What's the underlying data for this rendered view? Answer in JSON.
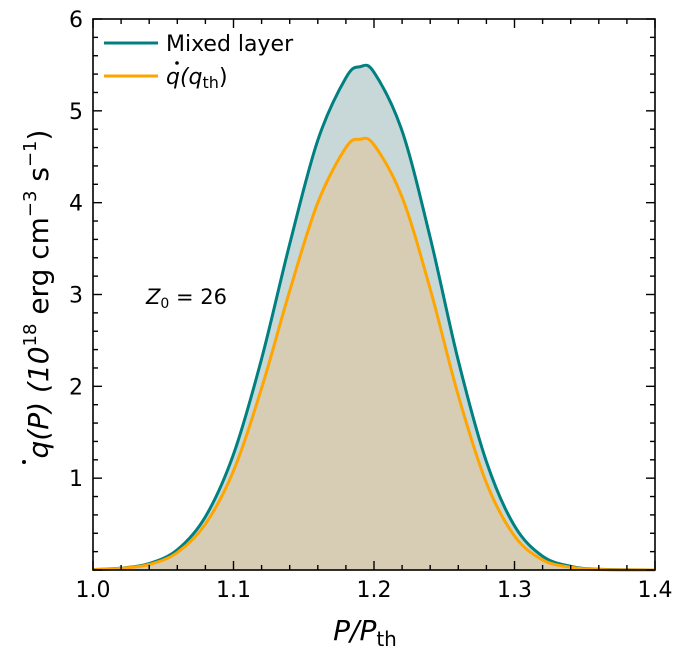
{
  "chart_data": {
    "type": "area",
    "xlabel": "P/P_th",
    "xlabel_main": "P/P",
    "xlabel_sub": "th",
    "ylabel_prefix": "q(P) (10",
    "ylabel_exp1": "18",
    "ylabel_mid": " erg cm",
    "ylabel_exp2": "−3",
    "ylabel_mid2": " s",
    "ylabel_exp3": "−1",
    "ylabel_suffix": ")",
    "xlim": [
      1.0,
      1.4
    ],
    "ylim": [
      0,
      6
    ],
    "xticks": [
      "1.0",
      "1.1",
      "1.2",
      "1.3",
      "1.4"
    ],
    "yticks": [
      "1",
      "2",
      "3",
      "4",
      "5",
      "6"
    ],
    "grid": false,
    "legend_position": "top-left",
    "annotation": {
      "main": "Z",
      "sub": "0",
      "rest": " = 26"
    },
    "series": [
      {
        "name": "Mixed layer",
        "color": "#008080",
        "fill": "#c8d7d8",
        "x": [
          1.0,
          1.02,
          1.04,
          1.06,
          1.08,
          1.1,
          1.12,
          1.14,
          1.16,
          1.18,
          1.19,
          1.2,
          1.22,
          1.24,
          1.26,
          1.28,
          1.3,
          1.32,
          1.34,
          1.36,
          1.4
        ],
        "y": [
          0.005,
          0.02,
          0.07,
          0.22,
          0.58,
          1.26,
          2.3,
          3.55,
          4.68,
          5.36,
          5.48,
          5.42,
          4.78,
          3.62,
          2.28,
          1.18,
          0.48,
          0.15,
          0.04,
          0.008,
          0.0
        ]
      },
      {
        "name": "q(q_th)",
        "name_main": "q(q",
        "name_sub": "th",
        "name_end": ")",
        "color": "#ffa500",
        "fill": "#d7cdb5",
        "x": [
          1.0,
          1.02,
          1.04,
          1.06,
          1.08,
          1.1,
          1.12,
          1.14,
          1.16,
          1.18,
          1.19,
          1.2,
          1.22,
          1.24,
          1.26,
          1.28,
          1.3,
          1.32,
          1.34,
          1.36,
          1.4
        ],
        "y": [
          0.004,
          0.018,
          0.06,
          0.19,
          0.5,
          1.08,
          1.98,
          3.04,
          4.0,
          4.6,
          4.69,
          4.63,
          4.06,
          3.06,
          1.9,
          0.95,
          0.37,
          0.11,
          0.03,
          0.006,
          0.0
        ]
      }
    ]
  }
}
